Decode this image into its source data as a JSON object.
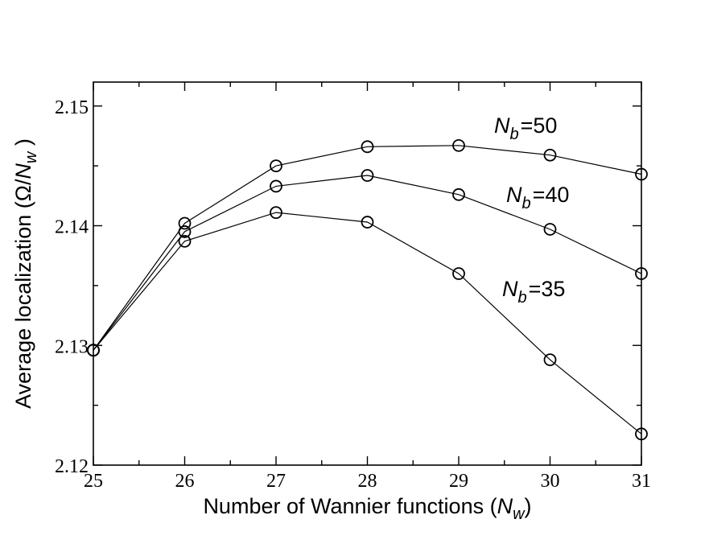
{
  "chart_data": {
    "type": "line",
    "xlabel": {
      "main": "Number of Wannier functions (",
      "italic": "N",
      "sub": "w",
      "close": ")"
    },
    "ylabel": {
      "main": "Average localization (Ω/",
      "italic": "N",
      "sub": "w",
      "close": " )"
    },
    "x": [
      25,
      26,
      27,
      28,
      29,
      30,
      31
    ],
    "xlim": [
      25,
      31
    ],
    "ylim": [
      2.12,
      2.152
    ],
    "xticks": [
      "25",
      "26",
      "27",
      "28",
      "29",
      "30",
      "31"
    ],
    "yticks": [
      {
        "value": 2.12,
        "label": "2.12"
      },
      {
        "value": 2.13,
        "label": "2.13"
      },
      {
        "value": 2.14,
        "label": "2.14"
      },
      {
        "value": 2.15,
        "label": "2.15"
      }
    ],
    "grid": false,
    "legend": "none",
    "marker": "open-circle",
    "series": [
      {
        "values": [
          2.1296,
          2.1402,
          2.145,
          2.1466,
          2.1467,
          2.1459,
          2.1443
        ],
        "label": {
          "italic": "N",
          "sub": "b",
          "value": "=50"
        }
      },
      {
        "values": [
          2.1296,
          2.1395,
          2.1433,
          2.1442,
          2.1426,
          2.1397,
          2.136
        ],
        "label": {
          "italic": "N",
          "sub": "b",
          "value": "=40"
        }
      },
      {
        "values": [
          2.1296,
          2.1387,
          2.1411,
          2.1403,
          2.136,
          2.1288,
          2.1226
        ],
        "label": {
          "italic": "N",
          "sub": "b",
          "value": "=35"
        }
      }
    ]
  }
}
